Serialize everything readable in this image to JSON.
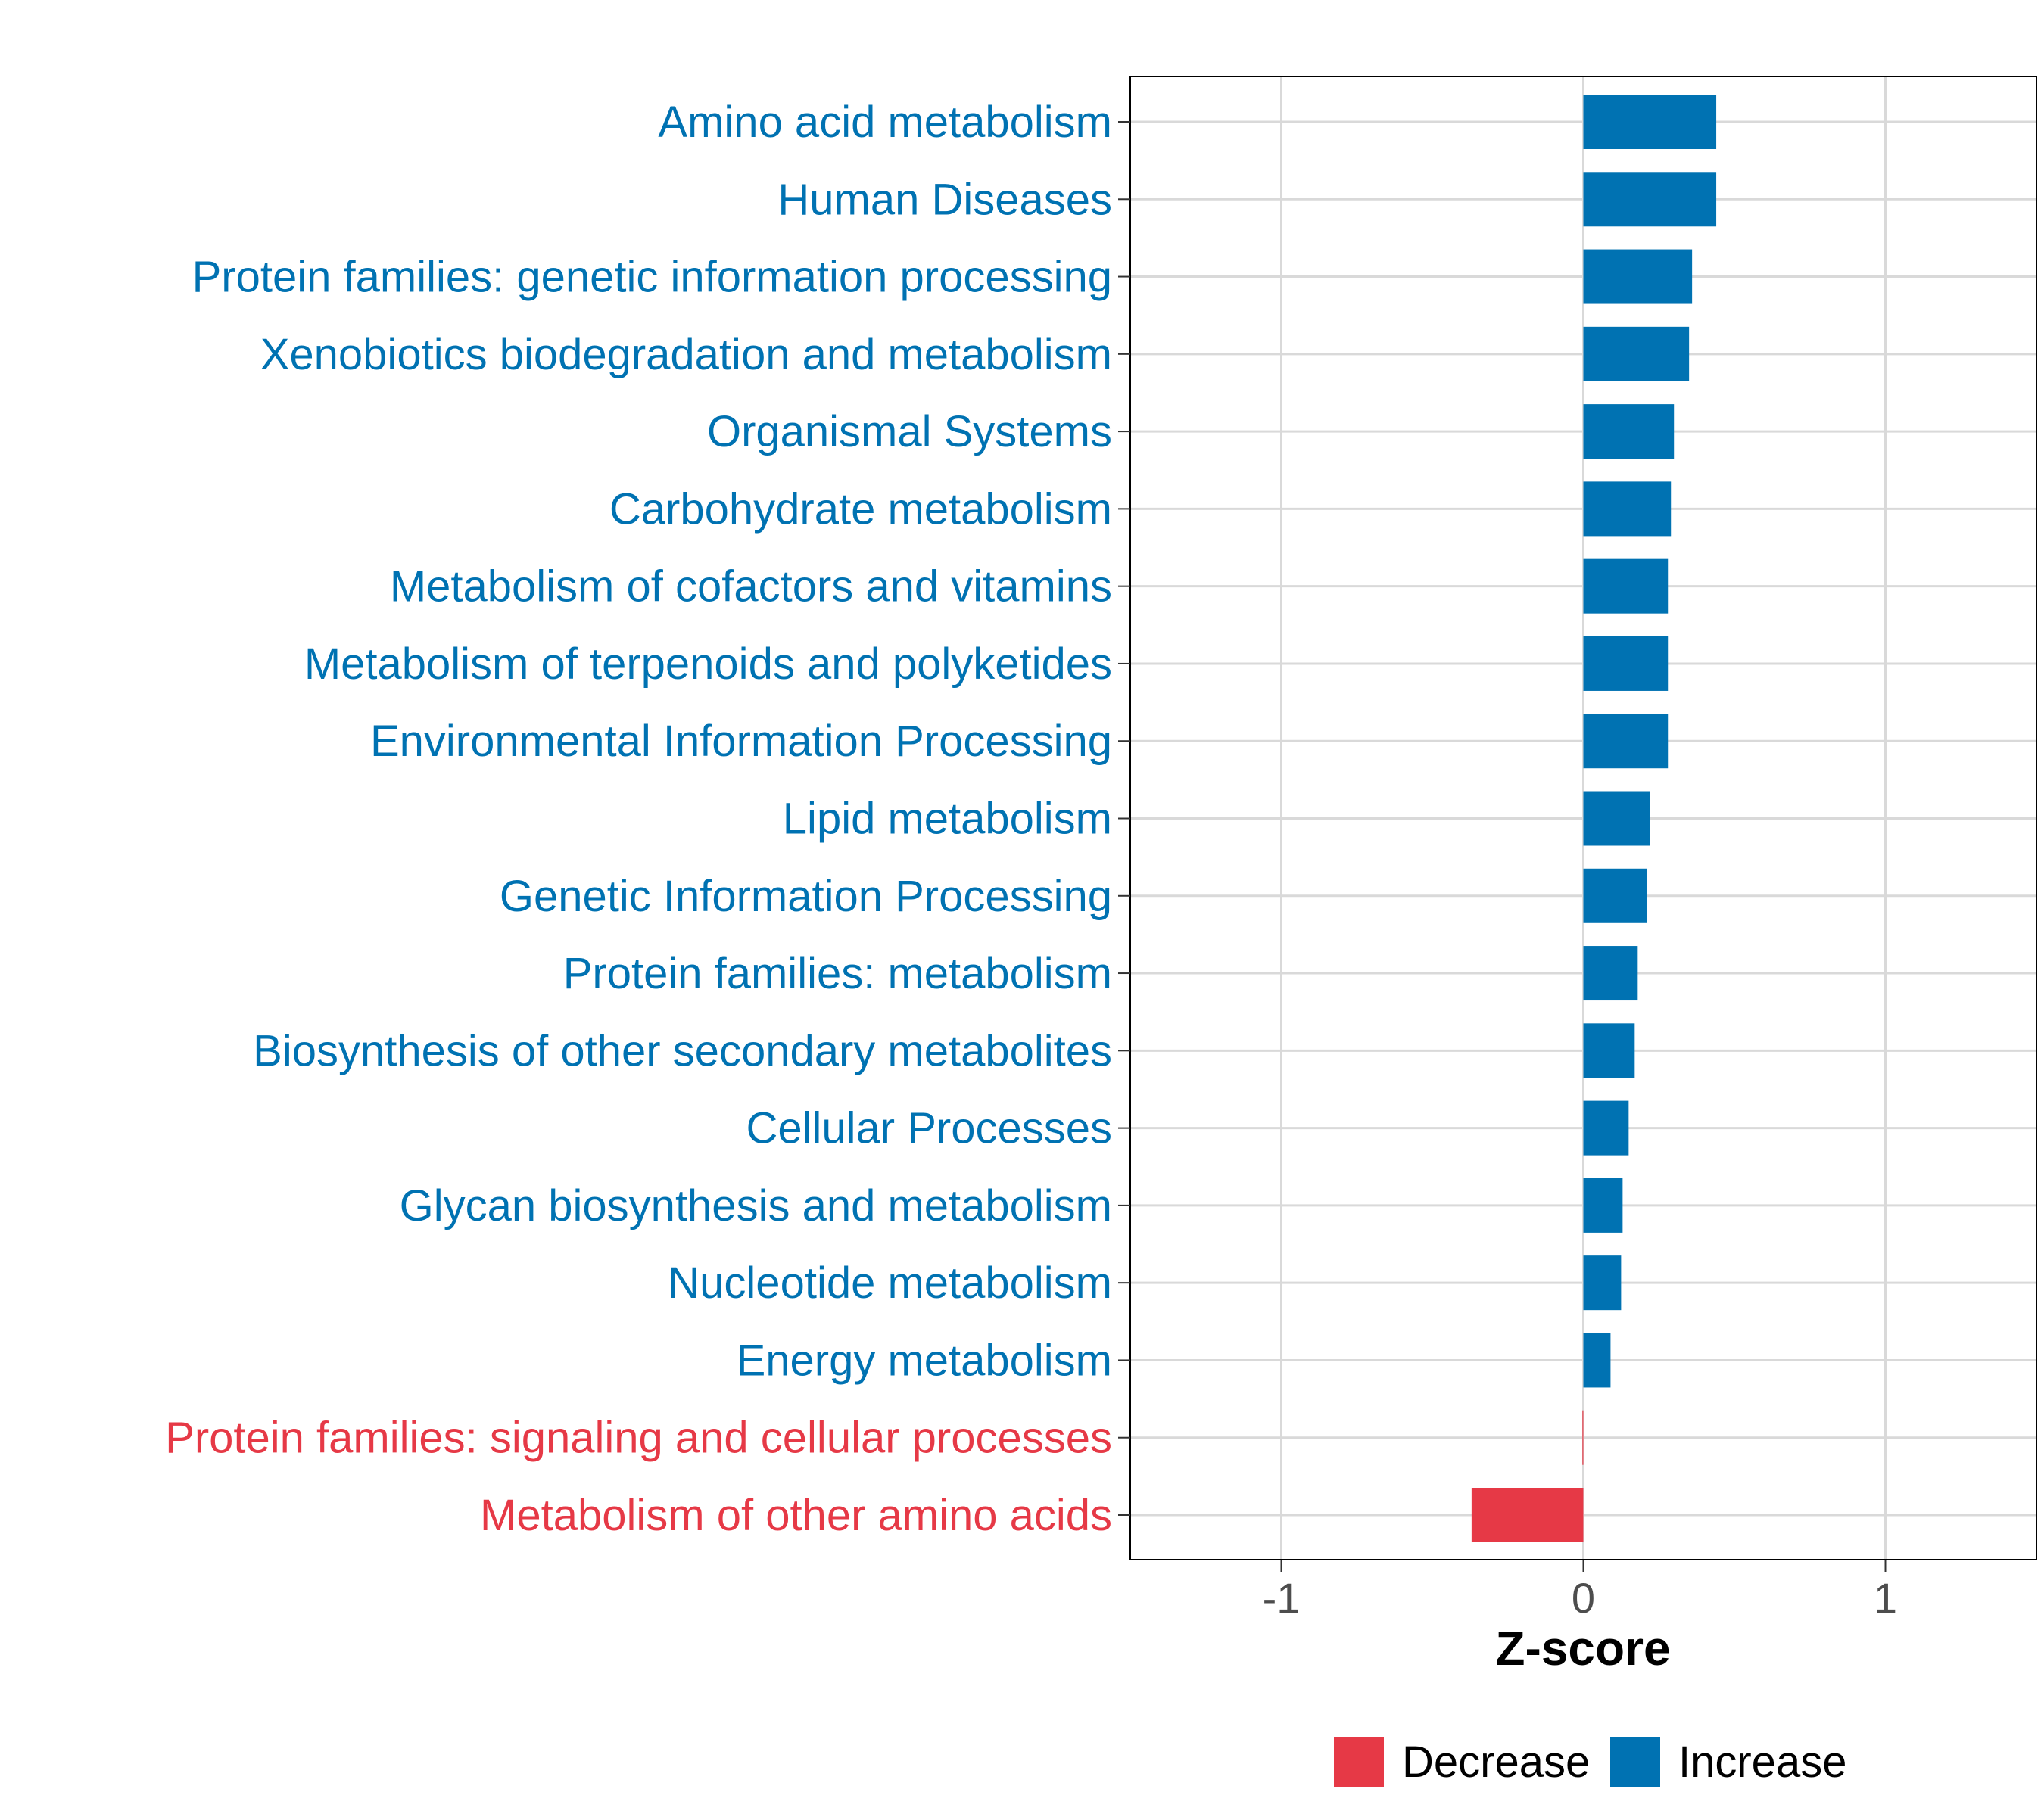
{
  "chart_data": {
    "type": "bar",
    "orientation": "horizontal",
    "title": "",
    "xlabel": "Z-score",
    "ylabel": "",
    "xlim": [
      -1.5,
      1.5
    ],
    "xticks": [
      -1,
      0,
      1
    ],
    "xtick_labels": [
      "-1",
      "0",
      "1"
    ],
    "grid": true,
    "legend_position": "bottom",
    "colors": {
      "Decrease": "#E63946",
      "Increase": "#0072B2"
    },
    "legend": [
      {
        "label": "Decrease",
        "color": "#E63946"
      },
      {
        "label": "Increase",
        "color": "#0072B2"
      }
    ],
    "categories": [
      "Amino acid metabolism",
      "Human Diseases",
      "Protein families: genetic information processing",
      "Xenobiotics biodegradation and metabolism",
      "Organismal Systems",
      "Carbohydrate metabolism",
      "Metabolism of cofactors and vitamins",
      "Metabolism of terpenoids and polyketides",
      "Environmental Information Processing",
      "Lipid metabolism",
      "Genetic Information Processing",
      "Protein families: metabolism",
      "Biosynthesis of other secondary metabolites",
      "Cellular Processes",
      "Glycan biosynthesis and metabolism",
      "Nucleotide metabolism",
      "Energy metabolism",
      "Protein families: signaling and cellular processes",
      "Metabolism of other amino acids"
    ],
    "values": [
      0.44,
      0.44,
      0.36,
      0.35,
      0.3,
      0.29,
      0.28,
      0.28,
      0.28,
      0.22,
      0.21,
      0.18,
      0.17,
      0.15,
      0.13,
      0.125,
      0.09,
      -0.003,
      -0.37
    ],
    "groups": [
      "Increase",
      "Increase",
      "Increase",
      "Increase",
      "Increase",
      "Increase",
      "Increase",
      "Increase",
      "Increase",
      "Increase",
      "Increase",
      "Increase",
      "Increase",
      "Increase",
      "Increase",
      "Increase",
      "Increase",
      "Decrease",
      "Decrease"
    ]
  }
}
